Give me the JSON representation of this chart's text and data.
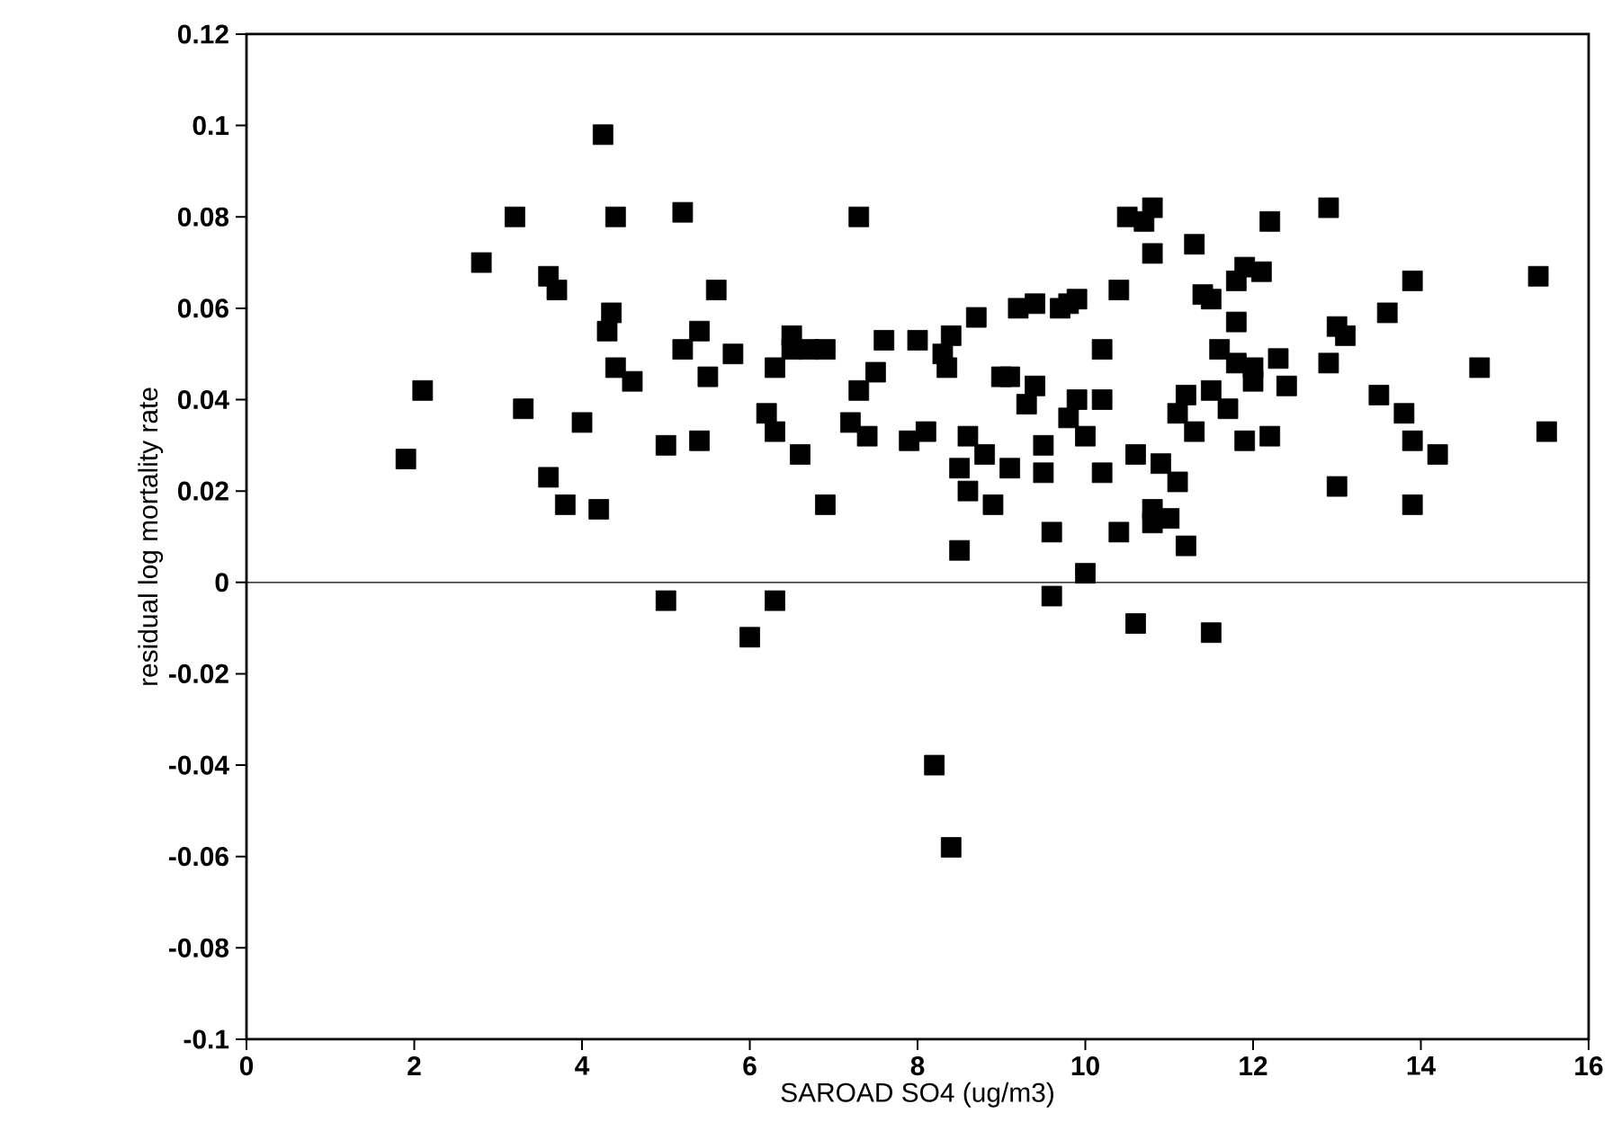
{
  "chart_data": {
    "type": "scatter",
    "xlabel": "SAROAD SO4 (ug/m3)",
    "ylabel": "residual log mortality rate",
    "xlim": [
      0,
      16
    ],
    "xticks": [
      0,
      2,
      4,
      6,
      8,
      10,
      12,
      14,
      16
    ],
    "ylim": [
      -0.1,
      0.12
    ],
    "yticks": [
      -0.1,
      -0.08,
      -0.06,
      -0.04,
      -0.02,
      0,
      0.02,
      0.04,
      0.06,
      0.08,
      0.1,
      0.12
    ],
    "grid": false,
    "marker": "square",
    "ref_lines": [
      {
        "axis": "y",
        "value": 0,
        "color": "#000000"
      }
    ],
    "series": [
      {
        "color": "#000000",
        "x": [
          1.9,
          2.1,
          2.8,
          3.2,
          3.3,
          3.6,
          3.6,
          3.7,
          3.8,
          4.0,
          4.2,
          4.25,
          4.3,
          4.35,
          4.4,
          4.4,
          4.6,
          5.0,
          5.0,
          5.2,
          5.2,
          5.4,
          5.4,
          5.5,
          5.6,
          5.8,
          6.0,
          6.2,
          6.3,
          6.3,
          6.3,
          6.5,
          6.5,
          6.6,
          6.7,
          6.9,
          6.9,
          7.2,
          7.3,
          7.3,
          7.4,
          7.5,
          7.6,
          7.9,
          8.0,
          8.1,
          8.2,
          8.3,
          8.35,
          8.4,
          8.4,
          8.5,
          8.5,
          8.6,
          8.6,
          8.7,
          8.8,
          8.9,
          9.0,
          9.1,
          9.1,
          9.2,
          9.3,
          9.4,
          9.4,
          9.5,
          9.5,
          9.6,
          9.6,
          9.7,
          9.8,
          9.8,
          9.9,
          9.9,
          10.0,
          10.0,
          10.2,
          10.2,
          10.2,
          10.4,
          10.4,
          10.5,
          10.6,
          10.6,
          10.7,
          10.8,
          10.8,
          10.8,
          10.8,
          10.9,
          11.0,
          11.1,
          11.1,
          11.2,
          11.2,
          11.3,
          11.3,
          11.4,
          11.5,
          11.5,
          11.5,
          11.6,
          11.7,
          11.8,
          11.8,
          11.8,
          11.9,
          11.9,
          12.0,
          12.0,
          12.1,
          12.2,
          12.2,
          12.3,
          12.4,
          12.9,
          12.9,
          13.0,
          13.0,
          13.1,
          13.5,
          13.6,
          13.8,
          13.9,
          13.9,
          13.9,
          14.2,
          14.7,
          15.4,
          15.5
        ],
        "values": [
          0.027,
          0.042,
          0.07,
          0.08,
          0.038,
          0.067,
          0.023,
          0.064,
          0.017,
          0.035,
          0.016,
          0.098,
          0.055,
          0.059,
          0.08,
          0.047,
          0.044,
          0.03,
          -0.004,
          0.081,
          0.051,
          0.055,
          0.031,
          0.045,
          0.064,
          0.05,
          -0.012,
          0.037,
          0.033,
          0.047,
          -0.004,
          0.051,
          0.054,
          0.028,
          0.051,
          0.051,
          0.017,
          0.035,
          0.042,
          0.08,
          0.032,
          0.046,
          0.053,
          0.031,
          0.053,
          0.033,
          -0.04,
          0.05,
          0.047,
          0.054,
          -0.058,
          0.025,
          0.007,
          0.02,
          0.032,
          0.058,
          0.028,
          0.017,
          0.045,
          0.045,
          0.025,
          0.06,
          0.039,
          0.061,
          0.043,
          0.03,
          0.024,
          0.011,
          -0.003,
          0.06,
          0.061,
          0.036,
          0.062,
          0.04,
          0.002,
          0.032,
          0.051,
          0.04,
          0.024,
          0.064,
          0.011,
          0.08,
          -0.009,
          0.028,
          0.079,
          0.082,
          0.072,
          0.016,
          0.013,
          0.026,
          0.014,
          0.037,
          0.022,
          0.041,
          0.008,
          0.074,
          0.033,
          0.063,
          0.042,
          0.062,
          -0.011,
          0.051,
          0.038,
          0.066,
          0.057,
          0.048,
          0.031,
          0.069,
          0.044,
          0.047,
          0.068,
          0.079,
          0.032,
          0.049,
          0.043,
          0.082,
          0.048,
          0.056,
          0.021,
          0.054,
          0.041,
          0.059,
          0.037,
          0.031,
          0.066,
          0.017,
          0.028,
          0.047,
          0.067,
          0.033
        ]
      }
    ]
  }
}
